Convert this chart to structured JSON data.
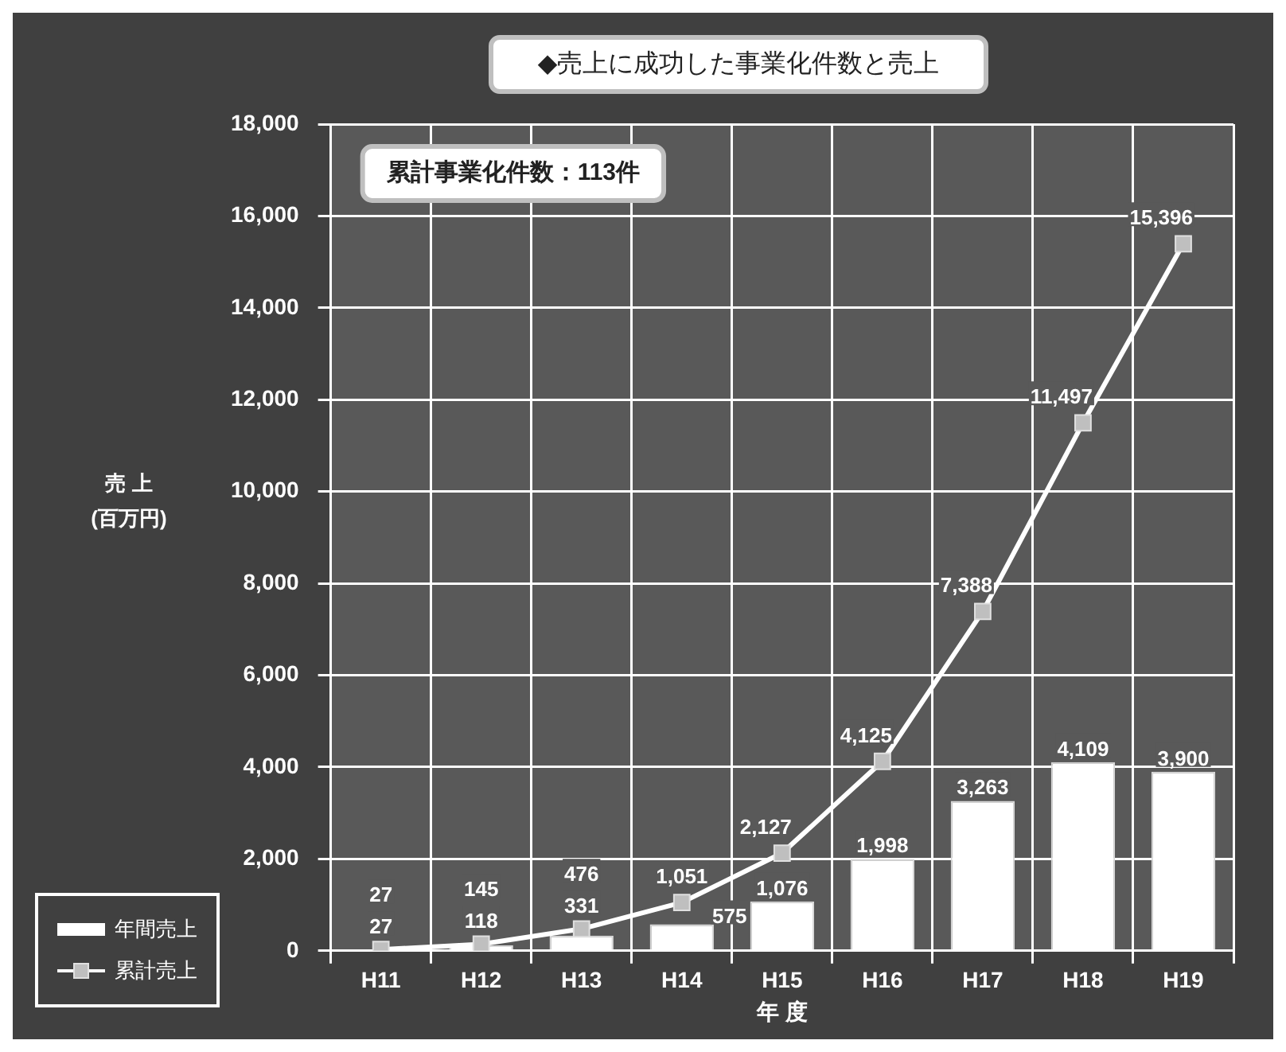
{
  "chart_data": {
    "type": "bar",
    "title": "◆売上に成功した事業化件数と売上",
    "xlabel": "年 度",
    "ylabel": "売 上 (百万円)",
    "categories": [
      "H11",
      "H12",
      "H13",
      "H14",
      "H15",
      "H16",
      "H17",
      "H18",
      "H19"
    ],
    "series": [
      {
        "name": "年間売上",
        "color": "#ffffff",
        "values": [
          27,
          118,
          331,
          575,
          1076,
          1998,
          3263,
          4109,
          3900
        ],
        "value_labels": [
          "27",
          "118",
          "331",
          "575",
          "1,076",
          "1,998",
          "3,263",
          "4,109",
          "3,900"
        ]
      },
      {
        "name": "累計売上",
        "type": "line",
        "color": "#ffffff",
        "values": [
          27,
          145,
          476,
          1051,
          2127,
          4125,
          7388,
          11497,
          15396
        ],
        "value_labels": [
          "27",
          "145",
          "476",
          "1,051",
          "2,127",
          "4,125",
          "7,388",
          "11,497",
          "15,396"
        ]
      }
    ],
    "ylim": [
      0,
      18000
    ],
    "yticks": [
      {
        "value": 0,
        "label": "0"
      },
      {
        "value": 2000,
        "label": "2,000"
      },
      {
        "value": 4000,
        "label": "4,000"
      },
      {
        "value": 6000,
        "label": "6,000"
      },
      {
        "value": 8000,
        "label": "8,000"
      },
      {
        "value": 10000,
        "label": "10,000"
      },
      {
        "value": 12000,
        "label": "12,000"
      },
      {
        "value": 14000,
        "label": "14,000"
      },
      {
        "value": 16000,
        "label": "16,000"
      },
      {
        "value": 18000,
        "label": "18,000"
      }
    ],
    "grid": true,
    "legend": "bottom left",
    "marker": "square",
    "line_style": "solid",
    "annotations": [
      "累計事業化件数：113件"
    ]
  }
}
